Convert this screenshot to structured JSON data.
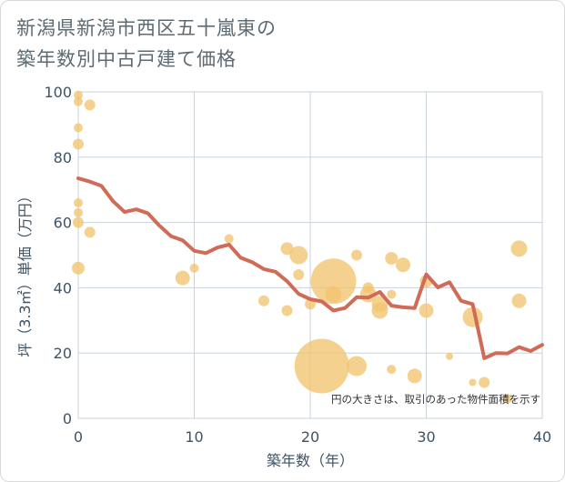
{
  "title_lines": [
    "新潟県新潟市西区五十嵐東の",
    "築年数別中古戸建て価格"
  ],
  "chart_data": {
    "type": "scatter",
    "xlabel": "築年数（年）",
    "ylabel": "坪（3.3㎡）単価（万円）",
    "xlim": [
      0,
      40
    ],
    "ylim": [
      0,
      100
    ],
    "x_ticks": [
      0,
      10,
      20,
      30,
      40
    ],
    "y_ticks": [
      0,
      20,
      40,
      60,
      80,
      100
    ],
    "x_tick_labels": [
      "0",
      "10",
      "20",
      "30",
      "40"
    ],
    "y_tick_labels": [
      "0",
      "20",
      "40",
      "60",
      "80",
      "100"
    ],
    "grid": true,
    "annotation": "円の大きさは、取引のあった物件面積を示す",
    "colors": {
      "bubble": "#f2c46f",
      "line": "#cf6b56",
      "grid": "#c8d3de",
      "plot_bg": "#ffffff"
    },
    "series": [
      {
        "type": "bubble",
        "points": [
          {
            "x": 0,
            "y": 99,
            "size": 5
          },
          {
            "x": 0,
            "y": 97,
            "size": 5
          },
          {
            "x": 1,
            "y": 96,
            "size": 6
          },
          {
            "x": 0,
            "y": 89,
            "size": 5
          },
          {
            "x": 0,
            "y": 84,
            "size": 6
          },
          {
            "x": 0,
            "y": 66,
            "size": 5
          },
          {
            "x": 0,
            "y": 63,
            "size": 5
          },
          {
            "x": 0,
            "y": 60,
            "size": 6
          },
          {
            "x": 1,
            "y": 57,
            "size": 6
          },
          {
            "x": 0,
            "y": 46,
            "size": 7
          },
          {
            "x": 9,
            "y": 43,
            "size": 8
          },
          {
            "x": 10,
            "y": 46,
            "size": 5
          },
          {
            "x": 13,
            "y": 55,
            "size": 5
          },
          {
            "x": 16,
            "y": 36,
            "size": 6
          },
          {
            "x": 18,
            "y": 52,
            "size": 7
          },
          {
            "x": 18,
            "y": 33,
            "size": 6
          },
          {
            "x": 19,
            "y": 50,
            "size": 10
          },
          {
            "x": 19,
            "y": 44,
            "size": 6
          },
          {
            "x": 20,
            "y": 35,
            "size": 6
          },
          {
            "x": 21,
            "y": 16,
            "size": 30
          },
          {
            "x": 22,
            "y": 42,
            "size": 25
          },
          {
            "x": 22,
            "y": 38,
            "size": 9
          },
          {
            "x": 24,
            "y": 50,
            "size": 6
          },
          {
            "x": 24,
            "y": 16,
            "size": 11
          },
          {
            "x": 25,
            "y": 40,
            "size": 6
          },
          {
            "x": 25,
            "y": 38,
            "size": 9
          },
          {
            "x": 26,
            "y": 35,
            "size": 9
          },
          {
            "x": 26,
            "y": 33,
            "size": 9
          },
          {
            "x": 27,
            "y": 49,
            "size": 7
          },
          {
            "x": 27,
            "y": 38,
            "size": 5
          },
          {
            "x": 27,
            "y": 15,
            "size": 5
          },
          {
            "x": 28,
            "y": 47,
            "size": 8
          },
          {
            "x": 29,
            "y": 13,
            "size": 8
          },
          {
            "x": 30,
            "y": 42,
            "size": 7
          },
          {
            "x": 30,
            "y": 33,
            "size": 8
          },
          {
            "x": 32,
            "y": 19,
            "size": 4
          },
          {
            "x": 34,
            "y": 11,
            "size": 4
          },
          {
            "x": 34,
            "y": 31,
            "size": 11
          },
          {
            "x": 35,
            "y": 11,
            "size": 6
          },
          {
            "x": 37,
            "y": 6,
            "size": 5
          },
          {
            "x": 38,
            "y": 52,
            "size": 9
          },
          {
            "x": 38,
            "y": 36,
            "size": 8
          }
        ]
      },
      {
        "type": "line",
        "x": [
          0,
          1,
          2,
          3,
          4,
          5,
          6,
          7,
          8,
          9,
          10,
          11,
          12,
          13,
          14,
          15,
          16,
          17,
          18,
          19,
          20,
          21,
          22,
          23,
          24,
          25,
          26,
          27,
          28,
          29,
          30,
          31,
          32,
          33,
          34,
          35,
          36,
          37,
          38,
          39,
          40
        ],
        "y": [
          73.5,
          72.5,
          71.2,
          66.5,
          63.2,
          64,
          62.8,
          59,
          55.8,
          54.5,
          51.3,
          50.6,
          52.3,
          53.2,
          49.2,
          47.8,
          45.7,
          44.9,
          42,
          38.1,
          36.5,
          35.8,
          33,
          33.8,
          37.1,
          37,
          38.7,
          34.5,
          34,
          33.8,
          44.1,
          40.1,
          41.7,
          36,
          35,
          18.4,
          20,
          19.9,
          21.8,
          20.6,
          22.5
        ]
      }
    ]
  }
}
